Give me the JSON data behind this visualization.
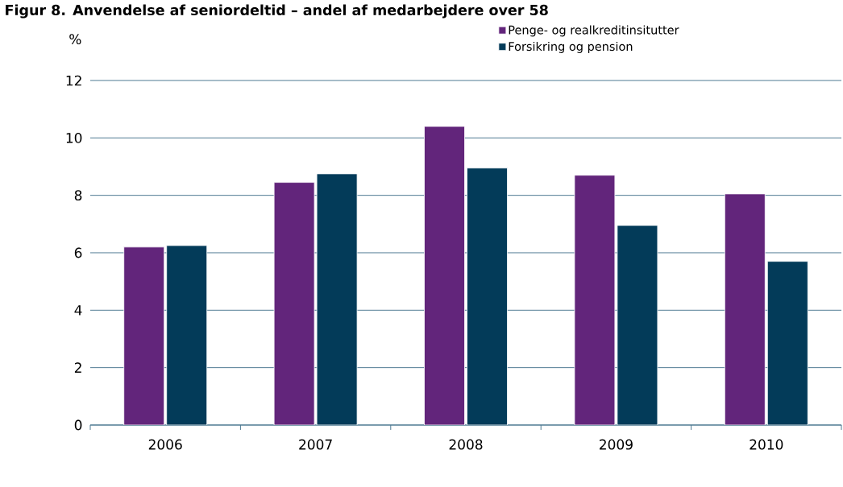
{
  "chart_data": {
    "type": "bar",
    "title": "Figur 8. Anvendelse af seniordeltid – andel af medarbejdere over 58",
    "ylabel": "%",
    "categories": [
      "2006",
      "2007",
      "2008",
      "2009",
      "2010"
    ],
    "series": [
      {
        "name": "Penge- og realkreditinsitutter",
        "color": "#62257b",
        "values": [
          6.2,
          8.45,
          10.4,
          8.7,
          8.05
        ]
      },
      {
        "name": "Forsikring og pension",
        "color": "#033b59",
        "values": [
          6.25,
          8.75,
          8.95,
          6.95,
          5.7
        ]
      }
    ],
    "ylim": [
      0,
      12
    ],
    "yticks": [
      0,
      2,
      4,
      6,
      8,
      10,
      12
    ],
    "grid": "y",
    "legend": "top right"
  }
}
